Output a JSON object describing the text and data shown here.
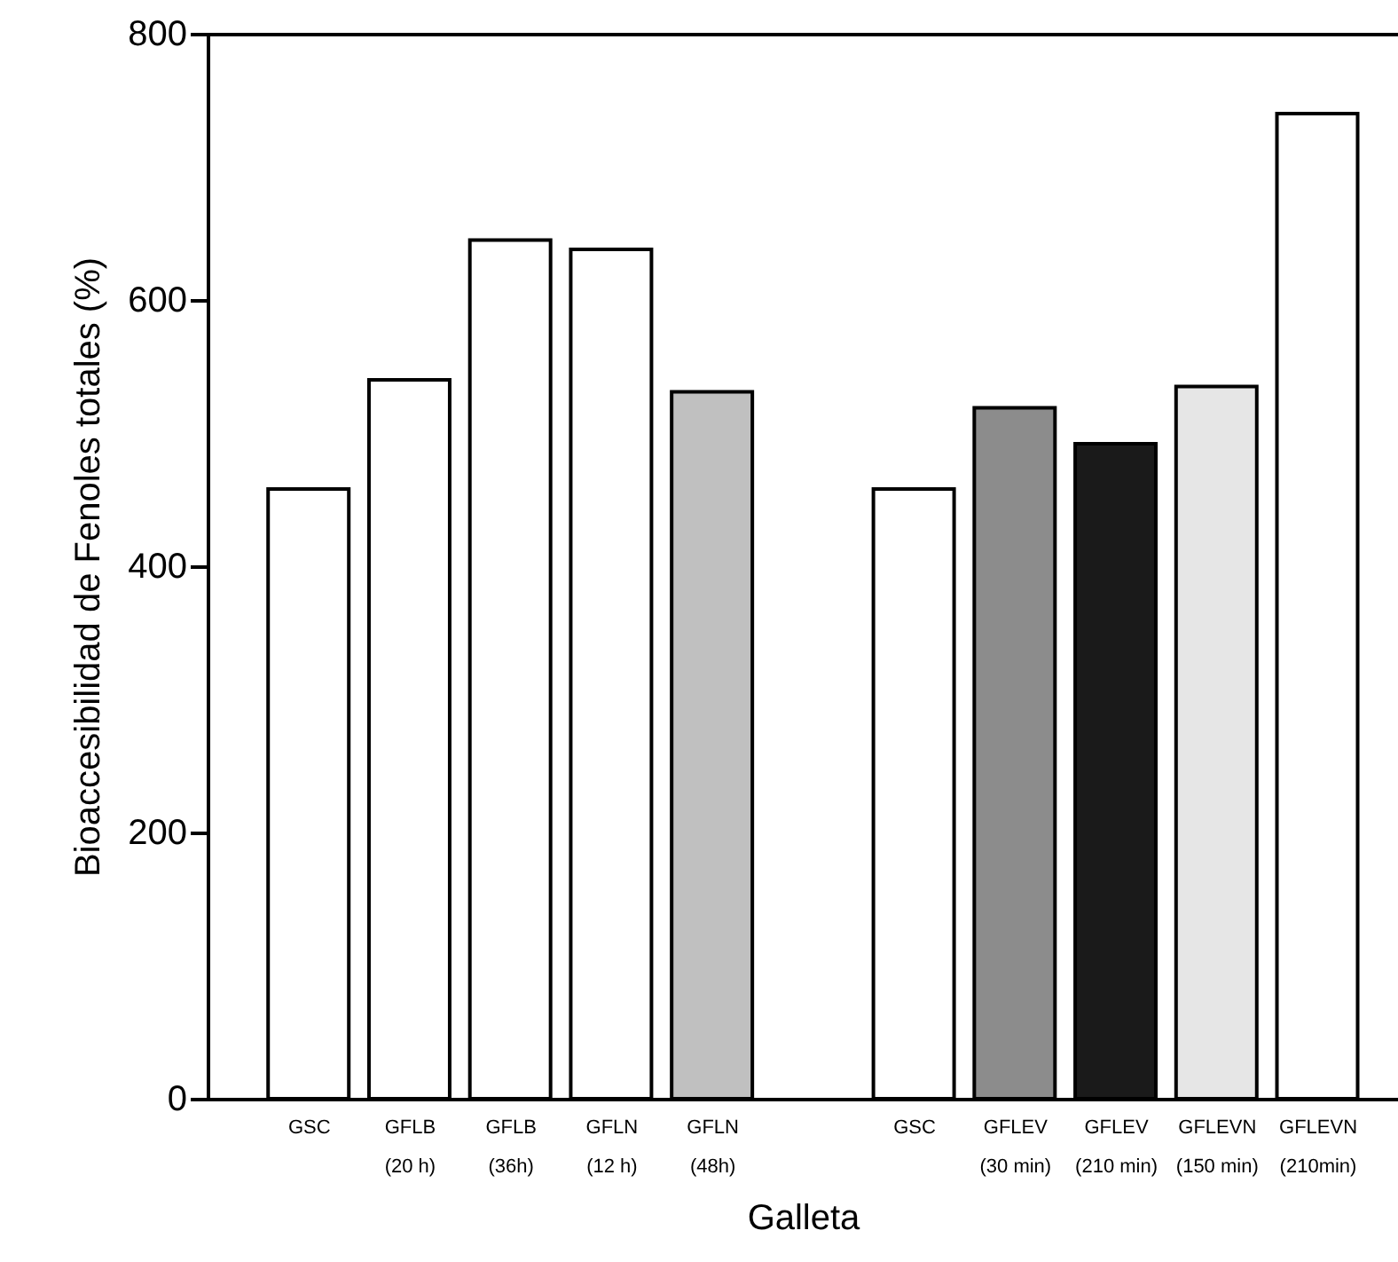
{
  "chart_data": {
    "type": "bar",
    "xlabel": "Galleta",
    "ylabel": "Bioaccesibilidad de Fenoles totales (%)",
    "categories": [
      "GSC",
      "GFLB\n(20 h)",
      "GFLB\n(36h)",
      "GFLN\n(12 h)",
      "GFLN\n(48h)",
      "GSC",
      "GFLEV\n(30 min)",
      "GFLEV\n(210 min)",
      "GFLEVN\n(150 min)",
      "GFLEVN\n(210min)"
    ],
    "values": [
      458,
      540,
      645,
      638,
      531,
      458,
      519,
      492,
      535,
      740
    ],
    "colors": [
      "#ffffff",
      "#ffffff",
      "#ffffff",
      "#ffffff",
      "#c0c0c0",
      "#ffffff",
      "#8c8c8c",
      "#1a1a1a",
      "#e6e6e6",
      "#ffffff"
    ],
    "ylim": [
      0,
      800
    ],
    "yticks": [
      0,
      200,
      400,
      600,
      800
    ],
    "grid": false
  }
}
